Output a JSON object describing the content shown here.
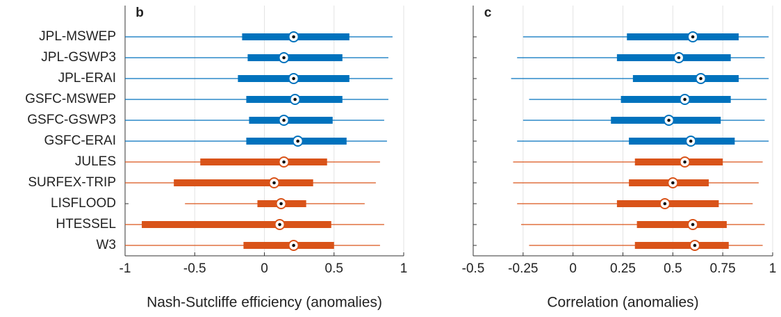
{
  "chart_data": [
    {
      "type": "box",
      "title": "b",
      "xlabel": "Nash-Sutcliffe efficiency (anomalies)",
      "categories": [
        "JPL-MSWEP",
        "JPL-GSWP3",
        "JPL-ERAI",
        "GSFC-MSWEP",
        "GSFC-GSWP3",
        "GSFC-ERAI",
        "JULES",
        "SURFEX-TRIP",
        "LISFLOOD",
        "HTESSEL",
        "W3"
      ],
      "colors": [
        "#0072bd",
        "#0072bd",
        "#0072bd",
        "#0072bd",
        "#0072bd",
        "#0072bd",
        "#d95319",
        "#d95319",
        "#d95319",
        "#d95319",
        "#d95319"
      ],
      "min": [
        -1,
        -1,
        -1,
        -1,
        -1,
        -1,
        -1,
        -1,
        -0.57,
        -1,
        -1
      ],
      "q1": [
        -0.16,
        -0.12,
        -0.19,
        -0.13,
        -0.11,
        -0.13,
        -0.46,
        -0.65,
        -0.05,
        -0.88,
        -0.15
      ],
      "median": [
        0.21,
        0.14,
        0.21,
        0.22,
        0.14,
        0.24,
        0.14,
        0.07,
        0.12,
        0.11,
        0.21
      ],
      "q3": [
        0.61,
        0.56,
        0.61,
        0.56,
        0.49,
        0.59,
        0.45,
        0.35,
        0.3,
        0.48,
        0.5
      ],
      "max": [
        0.92,
        0.89,
        0.92,
        0.89,
        0.86,
        0.88,
        0.83,
        0.8,
        0.72,
        0.86,
        0.83
      ],
      "xlim": [
        -1,
        1
      ],
      "xticks": [
        -1,
        -0.5,
        0,
        0.5,
        1
      ],
      "grid": true
    },
    {
      "type": "box",
      "title": "c",
      "xlabel": "Correlation (anomalies)",
      "colors": [
        "#0072bd",
        "#0072bd",
        "#0072bd",
        "#0072bd",
        "#0072bd",
        "#0072bd",
        "#d95319",
        "#d95319",
        "#d95319",
        "#d95319",
        "#d95319"
      ],
      "min": [
        -0.25,
        -0.28,
        -0.31,
        -0.22,
        -0.25,
        -0.28,
        -0.3,
        -0.3,
        -0.28,
        -0.26,
        -0.22
      ],
      "q1": [
        0.27,
        0.22,
        0.3,
        0.24,
        0.19,
        0.28,
        0.31,
        0.28,
        0.22,
        0.32,
        0.31
      ],
      "median": [
        0.6,
        0.53,
        0.64,
        0.56,
        0.48,
        0.59,
        0.56,
        0.5,
        0.46,
        0.6,
        0.61
      ],
      "q3": [
        0.83,
        0.79,
        0.83,
        0.79,
        0.74,
        0.81,
        0.75,
        0.68,
        0.73,
        0.77,
        0.78
      ],
      "max": [
        0.98,
        0.96,
        0.98,
        0.97,
        0.96,
        0.98,
        0.95,
        0.93,
        0.9,
        0.96,
        0.95
      ],
      "xlim": [
        -0.5,
        1
      ],
      "xticks": [
        -0.5,
        -0.25,
        0,
        0.25,
        0.5,
        0.75,
        1
      ],
      "grid": true
    }
  ]
}
